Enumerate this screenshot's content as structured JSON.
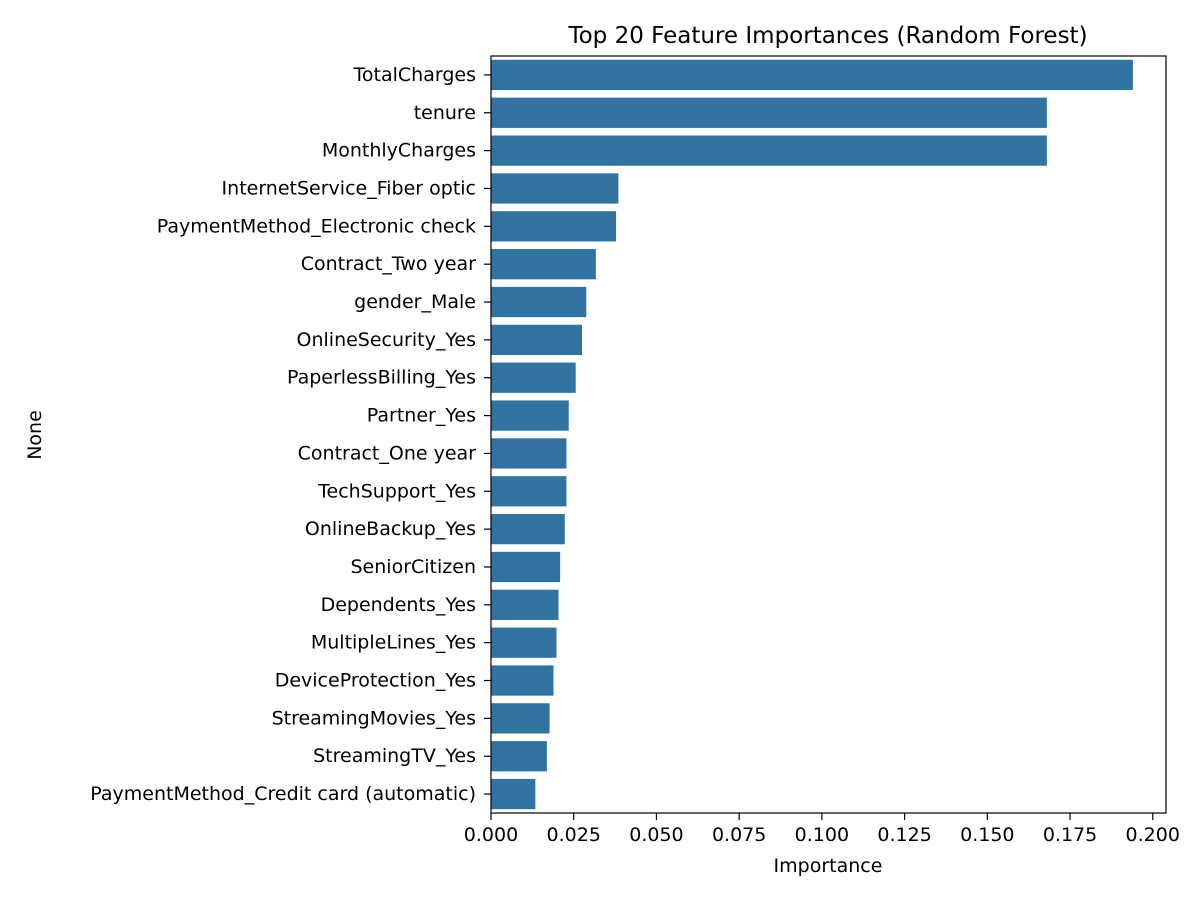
{
  "chart_data": {
    "type": "bar",
    "orientation": "horizontal",
    "title": "Top 20 Feature Importances (Random Forest)",
    "xlabel": "Importance",
    "ylabel": "None",
    "xlim": [
      0,
      0.204
    ],
    "xticks": [
      0.0,
      0.025,
      0.05,
      0.075,
      0.1,
      0.125,
      0.15,
      0.175,
      0.2
    ],
    "xtick_labels": [
      "0.000",
      "0.025",
      "0.050",
      "0.075",
      "0.100",
      "0.125",
      "0.150",
      "0.175",
      "0.200"
    ],
    "grid": false,
    "bar_color": "#3274a1",
    "categories": [
      "TotalCharges",
      "tenure",
      "MonthlyCharges",
      "InternetService_Fiber optic",
      "PaymentMethod_Electronic check",
      "Contract_Two year",
      "gender_Male",
      "OnlineSecurity_Yes",
      "PaperlessBilling_Yes",
      "Partner_Yes",
      "Contract_One year",
      "TechSupport_Yes",
      "OnlineBackup_Yes",
      "SeniorCitizen",
      "Dependents_Yes",
      "MultipleLines_Yes",
      "DeviceProtection_Yes",
      "StreamingMovies_Yes",
      "StreamingTV_Yes",
      "PaymentMethod_Credit card (automatic)"
    ],
    "values": [
      0.194,
      0.168,
      0.168,
      0.0385,
      0.0378,
      0.0317,
      0.0288,
      0.0275,
      0.0256,
      0.0235,
      0.0228,
      0.0228,
      0.0223,
      0.0209,
      0.0204,
      0.0198,
      0.0189,
      0.0177,
      0.0169,
      0.0134
    ]
  }
}
